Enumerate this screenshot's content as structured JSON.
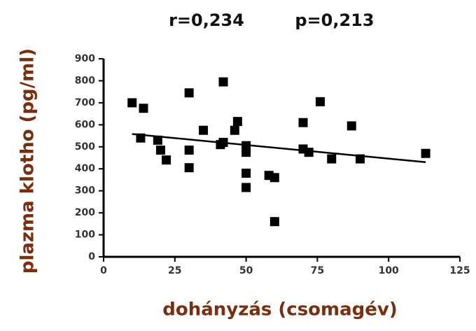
{
  "chart_data": {
    "type": "scatter",
    "annotations": [
      "r=0,234",
      "p=0,213"
    ],
    "x_label": "dohányzás (csomagév)",
    "y_label": "plazma klotho (pg/ml)",
    "color": "#000000",
    "label_color": "#7a2e0e",
    "series": [
      {
        "x": [
          10,
          14,
          13,
          19,
          20,
          22,
          30,
          30,
          30,
          35,
          42,
          42,
          41,
          47,
          46,
          50,
          50,
          50,
          50,
          58,
          60,
          60,
          70,
          70,
          72,
          76,
          80,
          87,
          90,
          113
        ],
        "values": [
          700,
          675,
          540,
          530,
          485,
          440,
          745,
          485,
          405,
          575,
          795,
          520,
          510,
          615,
          575,
          505,
          475,
          380,
          315,
          370,
          360,
          160,
          610,
          490,
          475,
          705,
          445,
          595,
          445,
          470
        ]
      }
    ],
    "trendline": {
      "x": [
        10,
        113
      ],
      "y": [
        558,
        430
      ]
    },
    "xlim": [
      0,
      125
    ],
    "xticks": [
      0,
      25,
      50,
      75,
      100,
      125
    ],
    "ylim": [
      0,
      900
    ],
    "yticks": [
      0,
      100,
      200,
      300,
      400,
      500,
      600,
      700,
      800,
      900
    ],
    "grid": false
  }
}
